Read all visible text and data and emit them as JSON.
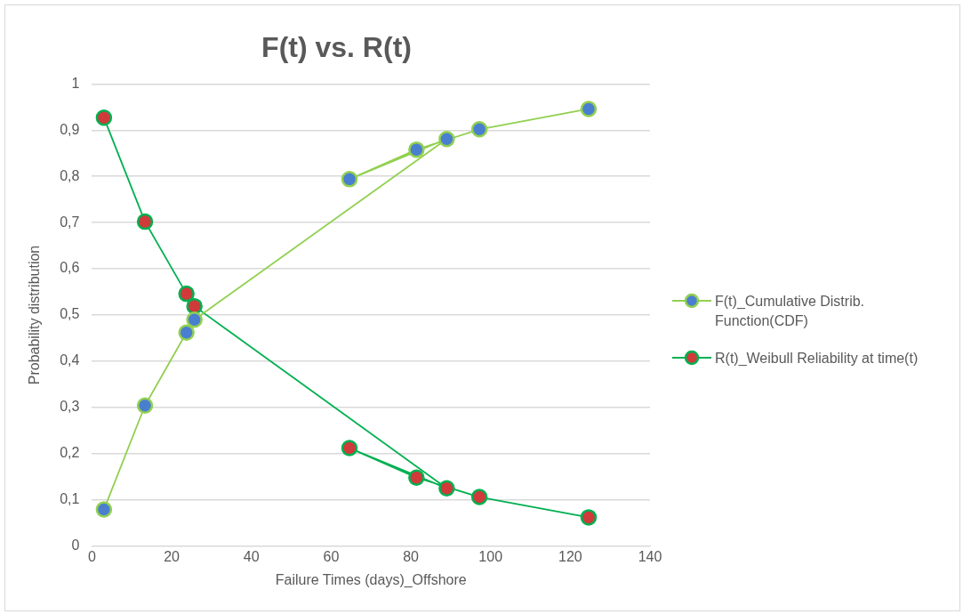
{
  "chart_data": {
    "type": "line",
    "title": "F(t) vs. R(t)",
    "xlabel": "Failure Times (days)_Offshore",
    "ylabel": "Probability distribution",
    "xlim": [
      0,
      140
    ],
    "xticks": [
      0,
      20,
      40,
      60,
      80,
      100,
      120,
      140
    ],
    "ylim": [
      0,
      1
    ],
    "yticks": [
      0,
      {
        "value": 0.1,
        "label": "0,1"
      },
      {
        "value": 0.2,
        "label": "0,2"
      },
      {
        "value": 0.3,
        "label": "0,3"
      },
      {
        "value": 0.4,
        "label": "0,4"
      },
      {
        "value": 0.5,
        "label": "0,5"
      },
      {
        "value": 0.6,
        "label": "0,6"
      },
      {
        "value": 0.7,
        "label": "0,7"
      },
      {
        "value": 0.8,
        "label": "0,8"
      },
      {
        "value": 0.9,
        "label": "0,9"
      },
      1
    ],
    "grid": "y",
    "legend": "right",
    "marker": "circle",
    "line_style": "solid",
    "x": [
      3,
      13.3,
      23.7,
      25.7,
      89,
      64.6,
      81.4,
      97.2,
      124.6
    ],
    "series": [
      {
        "name": "F(t)_Cumulative Distrib. Function(CDF)",
        "color": "#92d050",
        "values": [
          0.079,
          0.304,
          0.462,
          0.49,
          0.881,
          0.794,
          0.858,
          0.902,
          0.946
        ]
      },
      {
        "name": "R(t)_Weibull Reliability at time(t)",
        "color": "#00b050",
        "values": [
          0.927,
          0.702,
          0.546,
          0.519,
          0.125,
          0.212,
          0.148,
          0.106,
          0.062
        ]
      }
    ]
  }
}
